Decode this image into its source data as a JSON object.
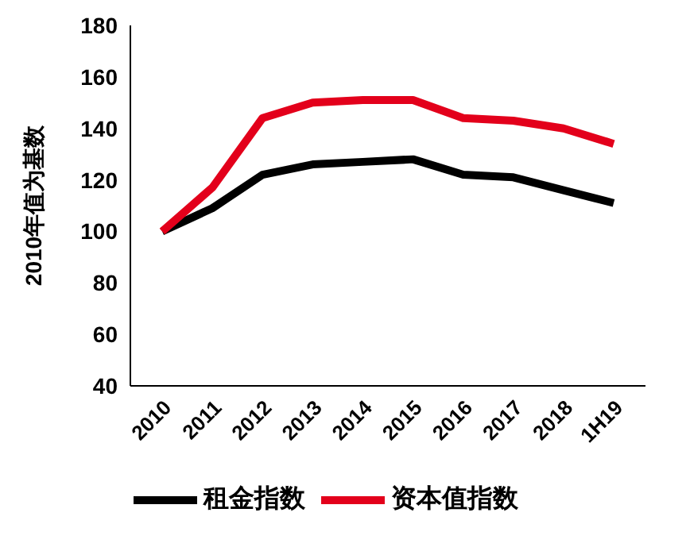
{
  "chart_data": {
    "type": "line",
    "ylabel": "2010年值为基数",
    "categories": [
      "2010",
      "2011",
      "2012",
      "2013",
      "2014",
      "2015",
      "2016",
      "2017",
      "2018",
      "1H19"
    ],
    "series": [
      {
        "name": "租金指数",
        "color": "#000000",
        "values": [
          100,
          109,
          122,
          126,
          127,
          128,
          122,
          121,
          116,
          111
        ]
      },
      {
        "name": "资本值指数",
        "color": "#e3001b",
        "values": [
          100,
          117,
          144,
          150,
          151,
          151,
          144,
          143,
          140,
          134
        ]
      }
    ],
    "ylim": [
      40,
      180
    ],
    "yticks": [
      40,
      60,
      80,
      100,
      120,
      140,
      160,
      180
    ],
    "grid": false,
    "legend": "bottom",
    "marker": "none",
    "line_style": "solid"
  }
}
